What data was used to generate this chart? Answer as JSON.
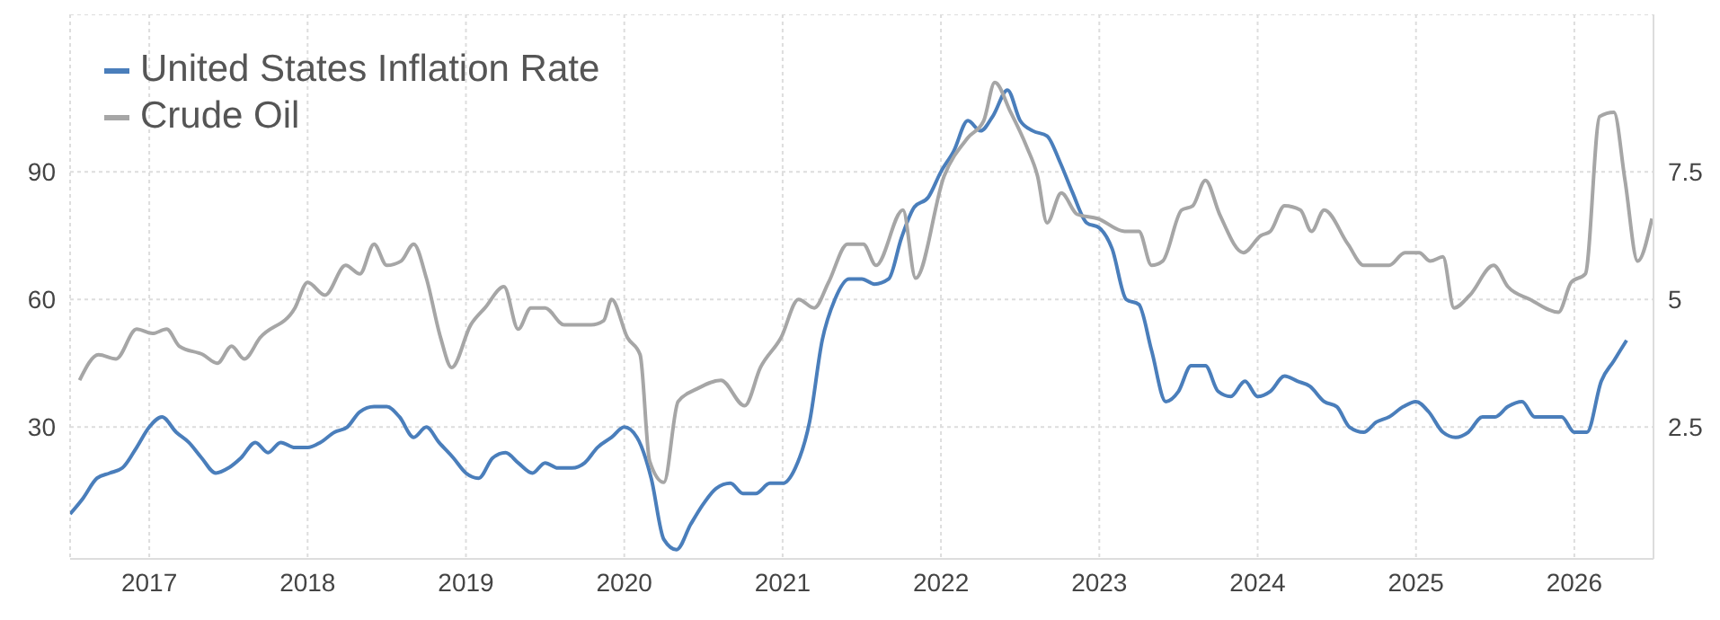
{
  "chart_data": {
    "type": "line",
    "legend": "top left",
    "grid": true,
    "xlim": [
      2016.5,
      2026.5
    ],
    "xticks": [
      2017,
      2018,
      2019,
      2020,
      2021,
      2022,
      2023,
      2024,
      2025,
      2026
    ],
    "ylim": [
      -1,
      127
    ],
    "yticks": [
      30,
      60,
      90
    ],
    "y2lim": [
      -0.08,
      10.58
    ],
    "y2ticks": [
      2.5,
      5,
      7.5
    ],
    "series": [
      {
        "name": "United States Inflation Rate",
        "color": "#4a7ebb",
        "axis": "y2",
        "x": [
          2016.5,
          2016.58,
          2016.67,
          2016.75,
          2016.83,
          2016.92,
          2017,
          2017.08,
          2017.17,
          2017.25,
          2017.33,
          2017.42,
          2017.5,
          2017.58,
          2017.67,
          2017.75,
          2017.83,
          2017.92,
          2018,
          2018.08,
          2018.17,
          2018.25,
          2018.33,
          2018.42,
          2018.5,
          2018.58,
          2018.67,
          2018.75,
          2018.83,
          2018.92,
          2019,
          2019.08,
          2019.17,
          2019.25,
          2019.33,
          2019.42,
          2019.5,
          2019.58,
          2019.67,
          2019.75,
          2019.83,
          2019.92,
          2020,
          2020.08,
          2020.17,
          2020.25,
          2020.33,
          2020.42,
          2020.5,
          2020.58,
          2020.67,
          2020.75,
          2020.83,
          2020.92,
          2021,
          2021.08,
          2021.17,
          2021.25,
          2021.33,
          2021.42,
          2021.5,
          2021.58,
          2021.67,
          2021.75,
          2021.83,
          2021.92,
          2022,
          2022.08,
          2022.17,
          2022.25,
          2022.33,
          2022.42,
          2022.5,
          2022.58,
          2022.67,
          2022.75,
          2022.83,
          2022.92,
          2023,
          2023.08,
          2023.17,
          2023.25,
          2023.33,
          2023.42,
          2023.5,
          2023.58,
          2023.67,
          2023.75,
          2023.83,
          2023.92,
          2024,
          2024.08,
          2024.17,
          2024.25,
          2024.33,
          2024.42,
          2024.5,
          2024.58,
          2024.67,
          2024.75,
          2024.83,
          2024.92,
          2025,
          2025.08,
          2025.17,
          2025.25,
          2025.33,
          2025.42,
          2025.5,
          2025.58,
          2025.67,
          2025.75,
          2025.83,
          2025.92,
          2026,
          2026.08,
          2026.17,
          2026.25,
          2026.33
        ],
        "values": [
          0.8,
          1.1,
          1.5,
          1.6,
          1.7,
          2.1,
          2.5,
          2.7,
          2.4,
          2.2,
          1.9,
          1.6,
          1.7,
          1.9,
          2.2,
          2.0,
          2.2,
          2.1,
          2.1,
          2.2,
          2.4,
          2.5,
          2.8,
          2.9,
          2.9,
          2.7,
          2.3,
          2.5,
          2.2,
          1.9,
          1.6,
          1.5,
          1.9,
          2.0,
          1.8,
          1.6,
          1.8,
          1.7,
          1.7,
          1.8,
          2.1,
          2.3,
          2.5,
          2.3,
          1.5,
          0.3,
          0.1,
          0.6,
          1.0,
          1.3,
          1.4,
          1.2,
          1.2,
          1.4,
          1.4,
          1.7,
          2.6,
          4.2,
          5.0,
          5.4,
          5.4,
          5.3,
          5.4,
          6.2,
          6.8,
          7.0,
          7.5,
          7.9,
          8.5,
          8.3,
          8.6,
          9.1,
          8.5,
          8.3,
          8.2,
          7.7,
          7.1,
          6.5,
          6.4,
          6.0,
          5.0,
          4.9,
          4.0,
          3.0,
          3.2,
          3.7,
          3.7,
          3.2,
          3.1,
          3.4,
          3.1,
          3.2,
          3.5,
          3.4,
          3.3,
          3.0,
          2.9,
          2.5,
          2.4,
          2.6,
          2.7,
          2.9,
          3.0,
          2.8,
          2.4,
          2.3,
          2.4,
          2.7,
          2.7,
          2.9,
          3.0,
          2.7,
          2.7,
          2.7,
          2.4,
          2.4,
          3.4,
          3.8,
          4.2
        ]
      },
      {
        "name": "Crude Oil",
        "color": "#a6a6a6",
        "x": [
          2016.56,
          2016.68,
          2016.79,
          2016.92,
          2017.02,
          2017.11,
          2017.19,
          2017.34,
          2017.43,
          2017.52,
          2017.6,
          2017.7,
          2017.92,
          2018,
          2018.11,
          2018.24,
          2018.33,
          2018.42,
          2018.5,
          2018.59,
          2018.67,
          2018.75,
          2018.84,
          2018.91,
          2019.03,
          2019.12,
          2019.24,
          2019.33,
          2019.41,
          2019.5,
          2019.62,
          2019.79,
          2019.87,
          2019.92,
          2020.02,
          2020.1,
          2020.16,
          2020.25,
          2020.34,
          2020.46,
          2020.61,
          2020.76,
          2020.86,
          2020.99,
          2021.1,
          2021.2,
          2021.29,
          2021.41,
          2021.51,
          2021.59,
          2021.76,
          2021.84,
          2022.02,
          2022.17,
          2022.27,
          2022.34,
          2022.44,
          2022.54,
          2022.61,
          2022.67,
          2022.76,
          2022.86,
          2022.99,
          2023.16,
          2023.25,
          2023.33,
          2023.4,
          2023.52,
          2023.59,
          2023.67,
          2023.76,
          2023.91,
          2024.02,
          2024.08,
          2024.17,
          2024.27,
          2024.34,
          2024.42,
          2024.57,
          2024.67,
          2024.74,
          2024.83,
          2024.93,
          2025.02,
          2025.09,
          2025.17,
          2025.24,
          2025.34,
          2025.49,
          2025.58,
          2025.72,
          2025.9,
          2025.98,
          2026.07,
          2026.16,
          2026.25,
          2026.32,
          2026.4,
          2026.49
        ],
        "values": [
          41,
          47,
          46,
          53,
          52,
          53,
          49,
          47,
          45,
          49,
          46,
          51,
          58,
          64,
          61,
          68,
          66,
          73,
          68,
          69,
          73,
          65,
          51,
          44,
          54,
          58,
          63,
          53,
          58,
          58,
          54,
          54,
          55,
          60,
          51,
          47,
          22,
          17,
          36,
          39,
          41,
          35,
          44,
          51,
          60,
          58,
          64,
          73,
          73,
          68,
          81,
          65,
          89,
          98,
          102,
          111,
          104,
          96,
          89,
          78,
          85,
          80,
          79,
          76,
          76,
          68,
          69,
          81,
          82,
          88,
          80,
          71,
          75,
          76,
          82,
          81,
          76,
          81,
          73,
          68,
          68,
          68,
          71,
          71,
          69,
          70,
          58,
          61,
          68,
          63,
          60,
          57,
          64,
          66,
          103,
          104,
          88,
          69,
          79
        ]
      }
    ]
  }
}
